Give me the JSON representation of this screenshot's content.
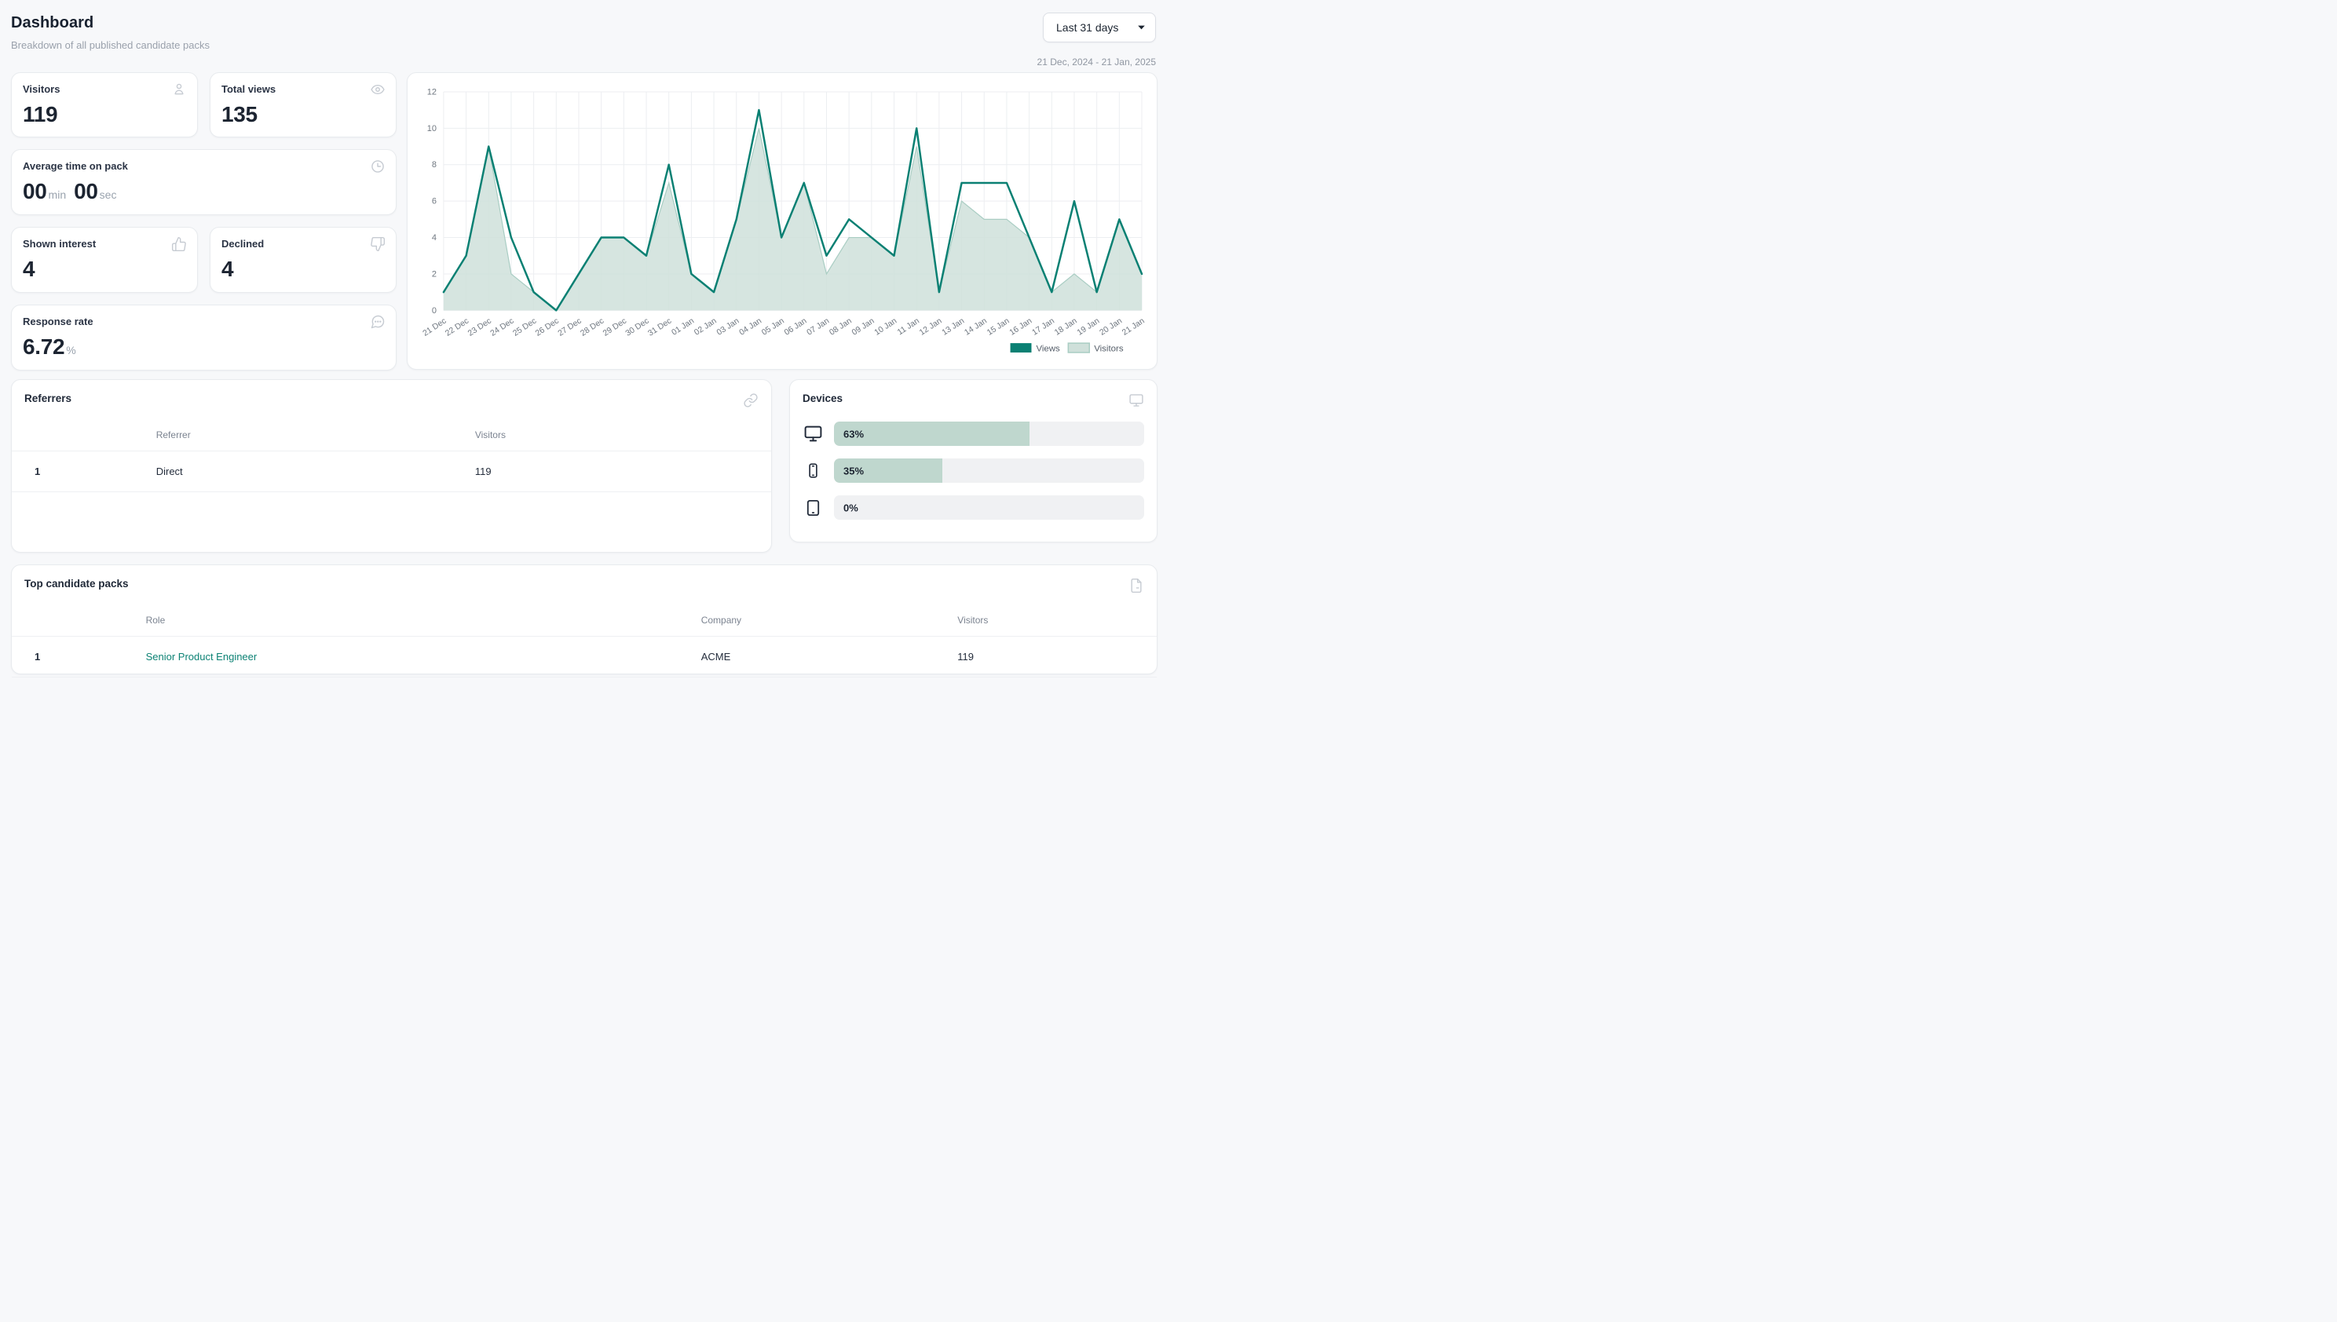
{
  "header": {
    "title": "Dashboard",
    "subtitle": "Breakdown of all published candidate packs",
    "range_label": "Last 31 days",
    "range_dates": "21 Dec, 2024 - 21 Jan, 2025"
  },
  "stats": {
    "visitors": {
      "label": "Visitors",
      "value": "119"
    },
    "total_views": {
      "label": "Total views",
      "value": "135"
    },
    "avg_time": {
      "label": "Average time on pack",
      "min": "00",
      "min_unit": "min",
      "sec": "00",
      "sec_unit": "sec"
    },
    "shown_interest": {
      "label": "Shown interest",
      "value": "4"
    },
    "declined": {
      "label": "Declined",
      "value": "4"
    },
    "response_rate": {
      "label": "Response rate",
      "value": "6.72",
      "unit": "%"
    }
  },
  "chart_data": {
    "type": "area",
    "x": [
      "21 Dec",
      "22 Dec",
      "23 Dec",
      "24 Dec",
      "25 Dec",
      "26 Dec",
      "27 Dec",
      "28 Dec",
      "29 Dec",
      "30 Dec",
      "31 Dec",
      "01 Jan",
      "02 Jan",
      "03 Jan",
      "04 Jan",
      "05 Jan",
      "06 Jan",
      "07 Jan",
      "08 Jan",
      "09 Jan",
      "10 Jan",
      "11 Jan",
      "12 Jan",
      "13 Jan",
      "14 Jan",
      "15 Jan",
      "16 Jan",
      "17 Jan",
      "18 Jan",
      "19 Jan",
      "20 Jan",
      "21 Jan"
    ],
    "series": [
      {
        "name": "Views",
        "values": [
          1,
          3,
          9,
          4,
          1,
          0,
          2,
          4,
          4,
          3,
          8,
          2,
          1,
          5,
          11,
          4,
          7,
          3,
          5,
          4,
          3,
          10,
          1,
          7,
          7,
          7,
          4,
          1,
          6,
          1,
          5,
          2
        ]
      },
      {
        "name": "Visitors",
        "values": [
          1,
          3,
          9,
          2,
          1,
          0,
          2,
          4,
          4,
          3,
          7,
          2,
          1,
          5,
          10,
          4,
          7,
          2,
          4,
          4,
          3,
          9,
          1,
          6,
          5,
          5,
          4,
          1,
          2,
          1,
          5,
          2
        ]
      }
    ],
    "ylim": [
      0,
      12
    ],
    "yticks": [
      0,
      2,
      4,
      6,
      8,
      10,
      12
    ],
    "grid": true,
    "legend_position": "bottom-right",
    "colors": {
      "views_line": "#0a8073",
      "visitors_fill": "#cfe0da",
      "visitors_stroke": "#a9cdc3",
      "grid_line": "#eceef1",
      "tick_text": "#6f7780"
    }
  },
  "referrers": {
    "title": "Referrers",
    "columns": {
      "referrer": "Referrer",
      "visitors": "Visitors"
    },
    "rows": [
      {
        "index": "1",
        "referrer": "Direct",
        "visitors": "119"
      }
    ]
  },
  "devices": {
    "title": "Devices",
    "rows": [
      {
        "device": "desktop",
        "percent": "63%",
        "value": 63
      },
      {
        "device": "mobile",
        "percent": "35%",
        "value": 35
      },
      {
        "device": "tablet",
        "percent": "0%",
        "value": 0
      }
    ]
  },
  "top_packs": {
    "title": "Top candidate packs",
    "columns": {
      "role": "Role",
      "company": "Company",
      "visitors": "Visitors"
    },
    "rows": [
      {
        "index": "1",
        "role": "Senior Product Engineer",
        "company": "ACME",
        "visitors": "119"
      }
    ]
  }
}
